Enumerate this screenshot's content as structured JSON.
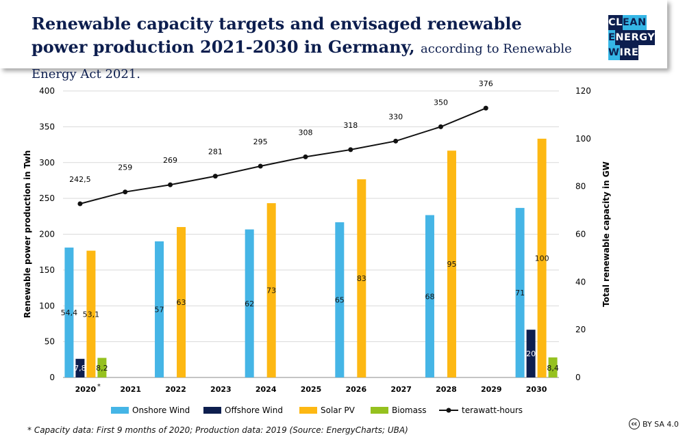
{
  "header": {
    "title_main": "Renewable capacity targets and envisaged renewable power production 2021-2030 in Germany,",
    "title_sub": "according to Renewable Energy Act 2021."
  },
  "logo": {
    "line1a": "CL",
    "line1b": "EAN",
    "line2a": "E",
    "line2b": "NERGY",
    "line3a": "W",
    "line3b": "IRE"
  },
  "footnote": "* Capacity data: First 9 months of 2020; Production data: 2019 (Source: EnergyCharts; UBA)",
  "license": {
    "icon": "cc-icon",
    "text": "BY SA 4.0"
  },
  "chart_data": {
    "type": "bar",
    "categories": [
      "2020",
      "2021",
      "2022",
      "2023",
      "2024",
      "2025",
      "2026",
      "2027",
      "2028",
      "2029",
      "2030"
    ],
    "category_asterisk": "*",
    "series": [
      {
        "name": "Onshore Wind",
        "axis": "right",
        "color": "#45b5e6",
        "values": [
          54.4,
          null,
          57,
          null,
          62,
          null,
          65,
          null,
          68,
          null,
          71
        ],
        "labels": [
          "54,4",
          "",
          "57",
          "",
          "62",
          "",
          "65",
          "",
          "68",
          "",
          "71"
        ]
      },
      {
        "name": "Offshore Wind",
        "axis": "right",
        "color": "#0d1e4e",
        "values": [
          7.8,
          null,
          null,
          null,
          null,
          null,
          null,
          null,
          null,
          null,
          20
        ],
        "labels": [
          "7,8",
          "",
          "",
          "",
          "",
          "",
          "",
          "",
          "",
          "",
          "20"
        ]
      },
      {
        "name": "Solar PV",
        "axis": "right",
        "color": "#fdb813",
        "values": [
          53.1,
          null,
          63,
          null,
          73,
          null,
          83,
          null,
          95,
          null,
          100
        ],
        "labels": [
          "53,1",
          "",
          "63",
          "",
          "73",
          "",
          "83",
          "",
          "95",
          "",
          "100"
        ]
      },
      {
        "name": "Biomass",
        "axis": "right",
        "color": "#95c11f",
        "values": [
          8.2,
          null,
          null,
          null,
          null,
          null,
          null,
          null,
          null,
          null,
          8.4
        ],
        "labels": [
          "8,2",
          "",
          "",
          "",
          "",
          "",
          "",
          "",
          "",
          "",
          "8,4"
        ]
      }
    ],
    "line_series": {
      "name": "terawatt-hours",
      "axis": "left",
      "color": "#111111",
      "values": [
        242.5,
        259,
        269,
        281,
        295,
        308,
        318,
        330,
        350,
        376,
        null
      ],
      "labels": [
        "242,5",
        "259",
        "269",
        "281",
        "295",
        "308",
        "318",
        "330",
        "350",
        "376",
        ""
      ]
    },
    "ylabel_left": "Renewable power production in Twh",
    "ylabel_right": "Total renewable capacity in GW",
    "ylim_left": [
      0,
      400
    ],
    "yticks_left": [
      "0",
      "50",
      "100",
      "150",
      "200",
      "250",
      "300",
      "350",
      "400"
    ],
    "ylim_right": [
      0,
      120
    ],
    "yticks_right": [
      "0",
      "20",
      "40",
      "60",
      "80",
      "100",
      "120"
    ],
    "grid": true,
    "legend": "bottom"
  }
}
